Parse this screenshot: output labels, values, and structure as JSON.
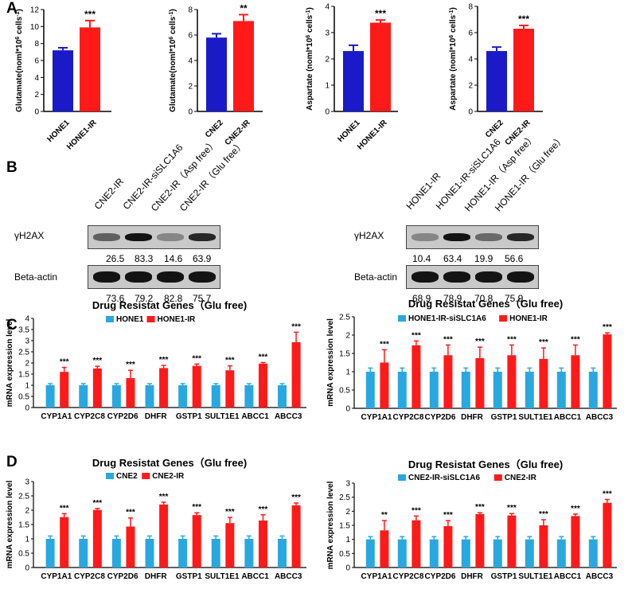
{
  "panels": {
    "A": "A",
    "B": "B",
    "C": "C",
    "D": "D"
  },
  "chart_data": [
    {
      "type": "bar",
      "panel": "A",
      "categories": [
        "HONE1",
        "HONE1-IR"
      ],
      "values": [
        7.2,
        9.9
      ],
      "errors": [
        0.3,
        0.8
      ],
      "colors": [
        "#1a1ac8",
        "#ff1a1a"
      ],
      "ylabel": "Glutamate(noml*10^6 cells^-1)",
      "ylim": [
        0,
        12
      ],
      "yticks": [
        0,
        2,
        4,
        6,
        8,
        10,
        12
      ],
      "sig": [
        "",
        "***"
      ],
      "title": ""
    },
    {
      "type": "bar",
      "panel": "A",
      "categories": [
        "CNE2",
        "CNE2-IR"
      ],
      "values": [
        5.8,
        7.1
      ],
      "errors": [
        0.3,
        0.5
      ],
      "colors": [
        "#1a1ac8",
        "#ff1a1a"
      ],
      "ylabel": "Glutamate(noml*10^6 cells^-1)",
      "ylim": [
        0,
        8
      ],
      "yticks": [
        0,
        2,
        4,
        6,
        8
      ],
      "sig": [
        "",
        "**"
      ],
      "title": ""
    },
    {
      "type": "bar",
      "panel": "A",
      "categories": [
        "HONE1",
        "HONE1-IR"
      ],
      "values": [
        2.3,
        3.38
      ],
      "errors": [
        0.22,
        0.1
      ],
      "colors": [
        "#1a1ac8",
        "#ff1a1a"
      ],
      "ylabel": "Aspartate (noml*10^6 cells^-1)",
      "ylim": [
        0,
        4
      ],
      "yticks": [
        0,
        1,
        2,
        3,
        4
      ],
      "sig": [
        "",
        "***"
      ],
      "title": ""
    },
    {
      "type": "bar",
      "panel": "A",
      "categories": [
        "CNE2",
        "CNE2-IR"
      ],
      "values": [
        4.6,
        6.3
      ],
      "errors": [
        0.3,
        0.25
      ],
      "colors": [
        "#1a1ac8",
        "#ff1a1a"
      ],
      "ylabel": "Aspartate (noml*10^6 cells^-1)",
      "ylim": [
        0,
        8
      ],
      "yticks": [
        0,
        2,
        4,
        6,
        8
      ],
      "sig": [
        "",
        "***"
      ],
      "title": ""
    },
    {
      "type": "bar",
      "panel": "C",
      "title": "Drug Resistat Genes（Glu free)",
      "ylabel": "mRNA expression level",
      "ylim": [
        0,
        4
      ],
      "yticks": [
        0,
        0.5,
        1,
        1.5,
        2,
        2.5,
        3,
        3.5,
        4
      ],
      "categories": [
        "CYP1A1",
        "CYP2C8",
        "CYP2D6",
        "DHFR",
        "GSTP1",
        "SULT1E1",
        "ABCC1",
        "ABCC3"
      ],
      "series": [
        {
          "name": "HONE1",
          "color": "#29a8e0",
          "values": [
            1,
            1,
            1,
            1,
            1,
            1,
            1,
            1
          ],
          "errors": [
            0.07,
            0.07,
            0.07,
            0.07,
            0.07,
            0.07,
            0.07,
            0.07
          ]
        },
        {
          "name": "HONE1-IR",
          "color": "#ff1a1a",
          "values": [
            1.6,
            1.75,
            1.32,
            1.77,
            1.87,
            1.67,
            1.97,
            2.93
          ],
          "errors": [
            0.2,
            0.1,
            0.35,
            0.12,
            0.08,
            0.2,
            0.05,
            0.45
          ]
        }
      ],
      "sig": [
        "***",
        "***",
        "***",
        "***",
        "***",
        "***",
        "***",
        "***"
      ]
    },
    {
      "type": "bar",
      "panel": "C",
      "title": "Drug Resistat Genes（Glu free)",
      "ylabel": "mRNA expression level",
      "ylim": [
        0,
        2.5
      ],
      "yticks": [
        0,
        0.5,
        1,
        1.5,
        2,
        2.5
      ],
      "categories": [
        "CYP1A1",
        "CYP2C8",
        "CYP2D6",
        "DHFR",
        "GSTP1",
        "SULT1E1",
        "ABCC1",
        "ABCC3"
      ],
      "series": [
        {
          "name": "HONE1-IR-siSLC1A6",
          "color": "#29a8e0",
          "values": [
            1,
            1,
            1,
            1,
            1,
            1,
            1,
            1
          ],
          "errors": [
            0.1,
            0.1,
            0.1,
            0.1,
            0.1,
            0.1,
            0.1,
            0.1
          ]
        },
        {
          "name": "HONE1-IR",
          "color": "#ff1a1a",
          "values": [
            1.25,
            1.72,
            1.45,
            1.37,
            1.45,
            1.35,
            1.45,
            2.02
          ],
          "errors": [
            0.35,
            0.12,
            0.28,
            0.3,
            0.28,
            0.3,
            0.28,
            0.04
          ]
        }
      ],
      "sig": [
        "***",
        "***",
        "***",
        "***",
        "***",
        "***",
        "***",
        "***"
      ]
    },
    {
      "type": "bar",
      "panel": "D",
      "title": "Drug Resistat Genes（Glu free)",
      "ylabel": "mRNA expression level",
      "ylim": [
        0,
        3
      ],
      "yticks": [
        0,
        0.5,
        1,
        1.5,
        2,
        2.5,
        3
      ],
      "categories": [
        "CYP1A1",
        "CYP2C8",
        "CYP2D6",
        "DHFR",
        "GSTP1",
        "SULT1E1",
        "ABCC1",
        "ABCC3"
      ],
      "series": [
        {
          "name": "CNE2",
          "color": "#29a8e0",
          "values": [
            1,
            1,
            1,
            1,
            1,
            1,
            1,
            1
          ],
          "errors": [
            0.1,
            0.1,
            0.1,
            0.1,
            0.1,
            0.1,
            0.1,
            0.1
          ]
        },
        {
          "name": "CNE2-IR",
          "color": "#ff1a1a",
          "values": [
            1.76,
            2.01,
            1.43,
            2.2,
            1.83,
            1.55,
            1.64,
            2.17
          ],
          "errors": [
            0.12,
            0.05,
            0.3,
            0.08,
            0.08,
            0.2,
            0.2,
            0.08
          ]
        }
      ],
      "sig": [
        "***",
        "***",
        "***",
        "***",
        "***",
        "***",
        "***",
        "***"
      ]
    },
    {
      "type": "bar",
      "panel": "D",
      "title": "Drug Resistat Genes（Glu free)",
      "ylabel": "mRNA expression level",
      "ylim": [
        0,
        3
      ],
      "yticks": [
        0,
        0.5,
        1,
        1.5,
        2,
        2.5,
        3
      ],
      "categories": [
        "CYP1A1",
        "CYP2C8",
        "CYP2D6",
        "DHFR",
        "GSTP1",
        "SULT1E1",
        "ABCC1",
        "ABCC3"
      ],
      "series": [
        {
          "name": "CNE2-IR-siSLC1A6",
          "color": "#29a8e0",
          "values": [
            1,
            1,
            1,
            1,
            1,
            1,
            1,
            1
          ],
          "errors": [
            0.1,
            0.1,
            0.1,
            0.1,
            0.1,
            0.1,
            0.1,
            0.1
          ]
        },
        {
          "name": "CNE2-IR",
          "color": "#ff1a1a",
          "values": [
            1.32,
            1.68,
            1.47,
            1.9,
            1.85,
            1.5,
            1.83,
            2.3
          ],
          "errors": [
            0.35,
            0.15,
            0.2,
            0.05,
            0.07,
            0.2,
            0.07,
            0.12
          ]
        }
      ],
      "sig": [
        "**",
        "***",
        "***",
        "***",
        "***",
        "***",
        "***",
        "***"
      ]
    }
  ],
  "blots": [
    {
      "columns": [
        "CNE2-IR",
        "CNE2-IR-siSLC1A6",
        "CNE2-IR（Asp free）",
        "CNE2-IR（Glu free）"
      ],
      "row1_label": "γH2AX",
      "row1_values": [
        "26.5",
        "83.3",
        "14.6",
        "63.9"
      ],
      "row2_label": "Beta-actin",
      "row2_values": [
        "73.6",
        "79.2",
        "82.8",
        "75.7"
      ]
    },
    {
      "columns": [
        "HONE1-IR",
        "HONE1-IR-siSLC1A6",
        "HONE1-IR（Asp free）",
        "HONE1-IR（Glu free）"
      ],
      "row1_label": "γH2AX",
      "row1_values": [
        "10.4",
        "63.4",
        "19.9",
        "56.6"
      ],
      "row2_label": "Beta-actin",
      "row2_values": [
        "68.9",
        "78.9",
        "70.8",
        "75.9"
      ]
    }
  ]
}
